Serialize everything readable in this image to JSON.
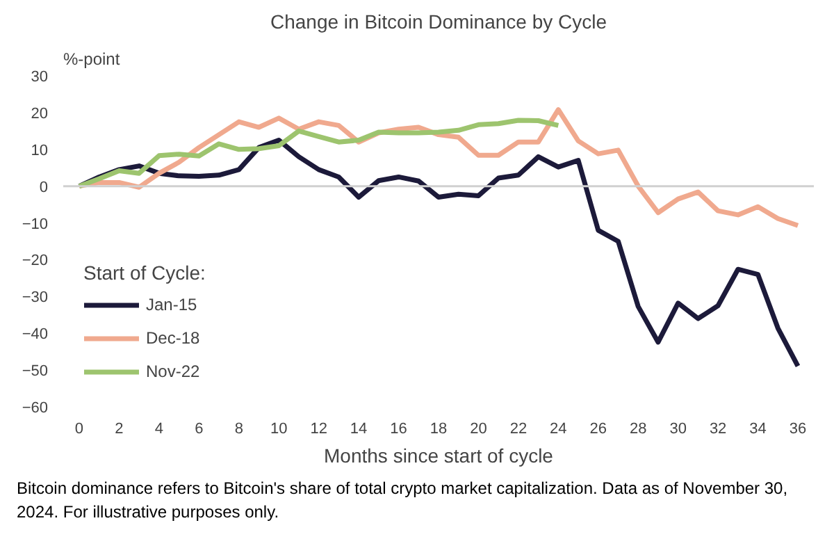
{
  "chart_data": {
    "type": "line",
    "title": "Change in Bitcoin Dominance by Cycle",
    "ylabel": "%-point",
    "xlabel": "Months since start of cycle",
    "legend_title": "Start of Cycle:",
    "legend": "bottom left",
    "annotations": [
      "Bitcoin dominance refers to Bitcoin's share of total crypto market capitalization. Data as of November 30, 2024. For illustrative purposes only."
    ],
    "x": [
      0,
      1,
      2,
      3,
      4,
      5,
      6,
      7,
      8,
      9,
      10,
      11,
      12,
      13,
      14,
      15,
      16,
      17,
      18,
      19,
      20,
      21,
      22,
      23,
      24,
      25,
      26,
      27,
      28,
      29,
      30,
      31,
      32,
      33,
      34,
      35,
      36
    ],
    "xlim": [
      -0.8,
      36.8
    ],
    "xticks": [
      0,
      2,
      4,
      6,
      8,
      10,
      12,
      14,
      16,
      18,
      20,
      22,
      24,
      26,
      28,
      30,
      32,
      34,
      36
    ],
    "ylim": [
      -60,
      30
    ],
    "yticks": [
      -60,
      -50,
      -40,
      -30,
      -20,
      -10,
      0,
      10,
      20,
      30
    ],
    "grid": false,
    "marker": "none",
    "line_style": "solid",
    "ref_lines": [
      {
        "axis": "y",
        "value": 0,
        "color": "#d0d0d0"
      }
    ],
    "series": [
      {
        "name": "Jan-15",
        "color": "#1c1a3a",
        "values": [
          0,
          2.5,
          4.5,
          5.5,
          3.5,
          2.8,
          2.7,
          3,
          4.5,
          10.5,
          12.5,
          8,
          4.5,
          2.5,
          -3,
          1.5,
          2.5,
          1.4,
          -3,
          -2.2,
          -2.6,
          2.2,
          3,
          8,
          5.2,
          7,
          -12,
          -15,
          -32.7,
          -42.4,
          -31.8,
          -36,
          -32.5,
          -22.6,
          -24,
          -38.6,
          -48.9
        ]
      },
      {
        "name": "Dec-18",
        "color": "#f0a98e",
        "values": [
          0,
          1,
          1,
          -0.3,
          3.5,
          6.5,
          10.5,
          14,
          17.5,
          16,
          18.5,
          15.5,
          17.5,
          16.5,
          12,
          14.5,
          15.5,
          16,
          14,
          13.3,
          8.4,
          8.4,
          12,
          12,
          20.8,
          12.3,
          8.8,
          9.8,
          0,
          -7.2,
          -3.5,
          -1.6,
          -6.7,
          -7.8,
          -5.6,
          -8.8,
          -10.7
        ]
      },
      {
        "name": "Nov-22",
        "color": "#9dc46e",
        "values": [
          0,
          2,
          4.2,
          3.5,
          8.3,
          8.7,
          8.2,
          11.5,
          10,
          10.2,
          11,
          15,
          13.5,
          12,
          12.5,
          14.7,
          14.5,
          14.5,
          14.7,
          15.2,
          16.7,
          17,
          17.9,
          17.8,
          16.5,
          null,
          null,
          null,
          null,
          null,
          null,
          null,
          null,
          null,
          null,
          null,
          null
        ]
      }
    ]
  }
}
